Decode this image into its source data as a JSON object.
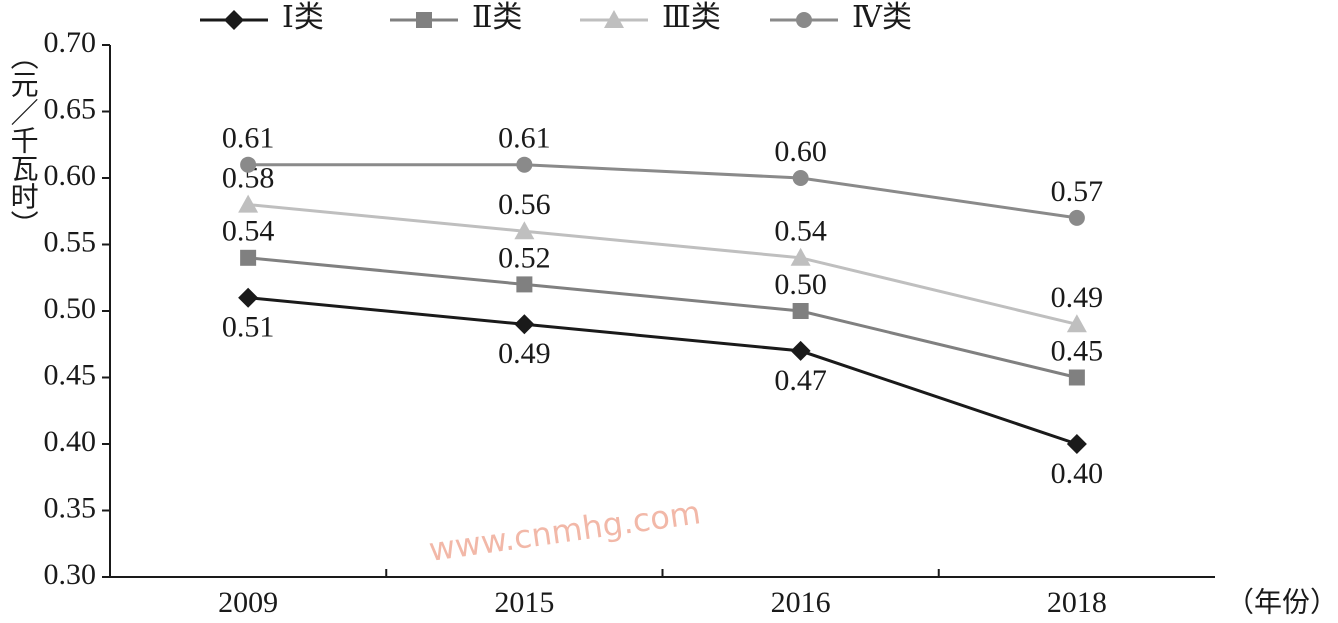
{
  "chart_data": {
    "type": "line",
    "y_label": "（元／千瓦时）",
    "x_label": "（年份）",
    "watermark": "www.cnmhg.com",
    "categories": [
      "2009",
      "2015",
      "2016",
      "2018"
    ],
    "series": [
      {
        "name": "Ⅰ类",
        "color": "#1a1a1a",
        "marker": "diamond",
        "label_position": "below",
        "values": [
          0.51,
          0.49,
          0.47,
          0.4
        ],
        "value_labels": [
          "0.51",
          "0.49",
          "0.47",
          "0.40"
        ]
      },
      {
        "name": "Ⅱ类",
        "color": "#808080",
        "marker": "square",
        "label_position": "above",
        "values": [
          0.54,
          0.52,
          0.5,
          0.45
        ],
        "value_labels": [
          "0.54",
          "0.52",
          "0.50",
          "0.45"
        ]
      },
      {
        "name": "Ⅲ类",
        "color": "#bfbfbf",
        "marker": "triangle",
        "label_position": "above",
        "values": [
          0.58,
          0.56,
          0.54,
          0.49
        ],
        "value_labels": [
          "0.58",
          "0.56",
          "0.54",
          "0.49"
        ]
      },
      {
        "name": "Ⅳ类",
        "color": "#8a8a8a",
        "marker": "circle",
        "label_position": "above",
        "values": [
          0.61,
          0.61,
          0.6,
          0.57
        ],
        "value_labels": [
          "0.61",
          "0.61",
          "0.60",
          "0.57"
        ]
      }
    ],
    "ylim": [
      0.3,
      0.7
    ],
    "yticks": [
      {
        "value": 0.3,
        "label": "0.30"
      },
      {
        "value": 0.35,
        "label": "0.35"
      },
      {
        "value": 0.4,
        "label": "0.40"
      },
      {
        "value": 0.45,
        "label": "0.45"
      },
      {
        "value": 0.5,
        "label": "0.50"
      },
      {
        "value": 0.55,
        "label": "0.55"
      },
      {
        "value": 0.6,
        "label": "0.60"
      },
      {
        "value": 0.65,
        "label": "0.65"
      },
      {
        "value": 0.7,
        "label": "0.70"
      }
    ],
    "grid": false,
    "legend": "top"
  }
}
